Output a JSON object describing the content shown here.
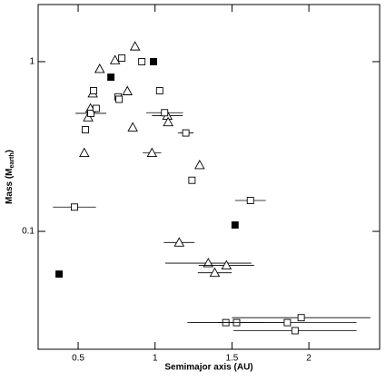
{
  "chart_data": {
    "type": "scatter",
    "x_label": "Semimajor axis (AU)",
    "y_label": {
      "text": "Mass (M",
      "subscript": "earth",
      "suffix": ")"
    },
    "xlim": [
      0.24,
      2.46
    ],
    "ylim": [
      0.0202,
      2.17
    ],
    "log_y": true,
    "xticks": [
      0.5,
      1,
      1.5,
      2
    ],
    "yticks": [
      0.1,
      1
    ],
    "series": [
      {
        "marker": "triangle",
        "color": "#000",
        "filled": false,
        "x": [
          0.54,
          0.565,
          0.58,
          0.595,
          0.64,
          0.74,
          0.87,
          0.82,
          0.855,
          0.98,
          1.08,
          1.085,
          1.29,
          1.157,
          1.346,
          1.388,
          1.464
        ],
        "values": [
          0.29,
          0.47,
          0.53,
          0.65,
          0.906,
          1.02,
          1.23,
          0.67,
          0.41,
          0.29,
          0.48,
          0.44,
          0.246,
          0.086,
          0.065,
          0.057,
          0.063
        ],
        "xerr": [
          null,
          null,
          null,
          null,
          null,
          null,
          null,
          null,
          null,
          0.06,
          0.1,
          null,
          null,
          0.1,
          0.28,
          0.11,
          0.18
        ]
      },
      {
        "marker": "square",
        "color": "#000",
        "filled": false,
        "x": [
          0.547,
          0.583,
          0.6,
          0.617,
          0.76,
          0.766,
          0.784,
          0.914,
          1.03,
          1.062,
          1.2,
          1.24,
          1.62,
          0.476,
          1.46,
          1.53,
          1.86,
          1.91,
          1.95
        ],
        "values": [
          0.397,
          0.496,
          0.674,
          0.53,
          0.62,
          0.6,
          1.05,
          1.0,
          0.674,
          0.5,
          0.38,
          0.2,
          0.152,
          0.139,
          0.029,
          0.029,
          0.029,
          0.026,
          0.031
        ],
        "xerr": [
          null,
          0.1,
          null,
          null,
          null,
          null,
          null,
          null,
          null,
          0.12,
          0.05,
          null,
          0.1,
          0.14,
          0.25,
          0.3,
          0.45,
          0.4,
          0.45
        ]
      },
      {
        "marker": "square",
        "color": "#000",
        "filled": true,
        "x": [
          0.376,
          0.713,
          0.99,
          1.52
        ],
        "values": [
          0.056,
          0.81,
          1.0,
          0.109
        ],
        "xerr": [
          null,
          null,
          null,
          null
        ]
      }
    ]
  }
}
